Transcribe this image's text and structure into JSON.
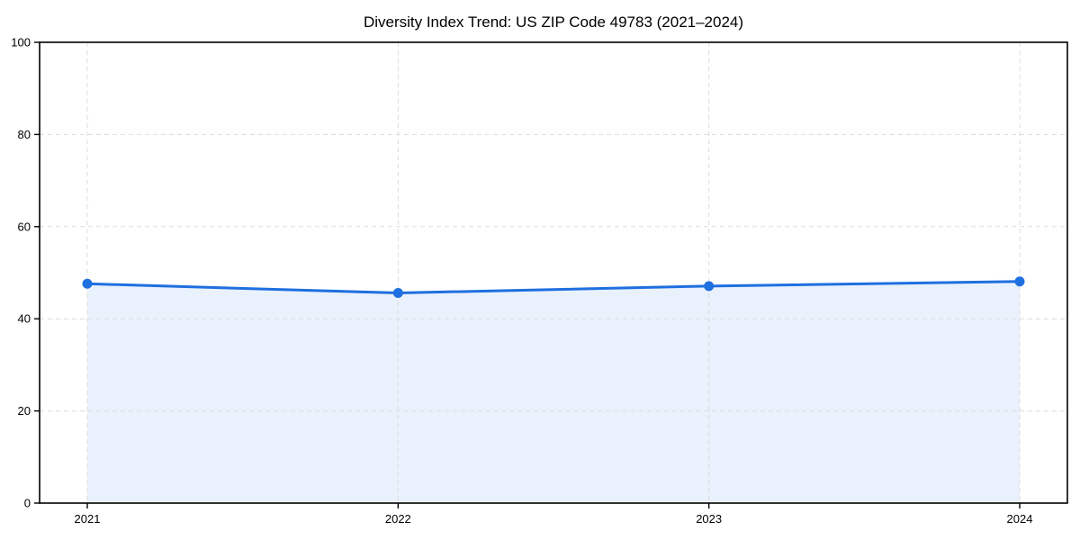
{
  "chart_data": {
    "type": "line",
    "title": "Diversity Index Trend: US ZIP Code 49783 (2021–2024)",
    "categories": [
      "2021",
      "2022",
      "2023",
      "2024"
    ],
    "series": [
      {
        "name": "Diversity Index",
        "values": [
          47.6,
          45.6,
          47.1,
          48.1
        ]
      }
    ],
    "xlabel": "",
    "ylabel": "",
    "ylim": [
      0,
      100
    ],
    "yticks": [
      0,
      20,
      40,
      60,
      80,
      100
    ],
    "grid": "dashed",
    "legend": "none",
    "area_fill": true,
    "marker": "circle",
    "colors": {
      "line": "#1e6fe0",
      "marker": "#1e6fe0",
      "area": "#e9f1fc",
      "grid": "#dcdcdc",
      "axis": "#000000",
      "text": "#000000"
    }
  }
}
